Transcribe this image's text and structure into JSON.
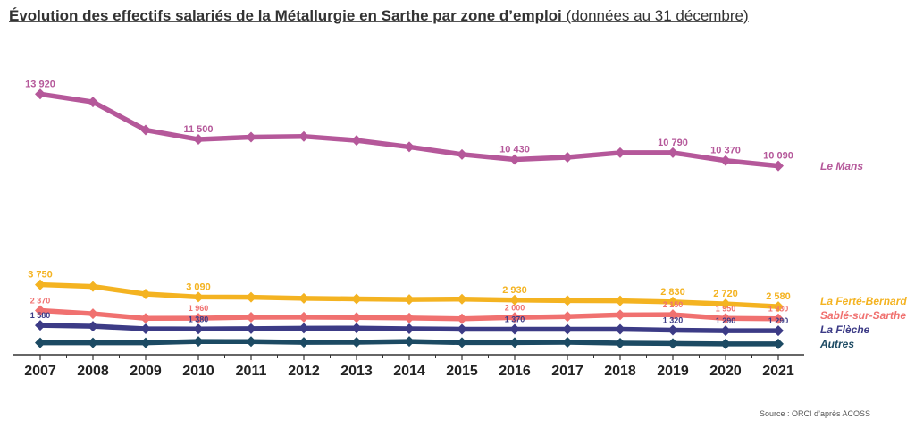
{
  "title": "Évolution des effectifs salariés de la Métallurgie en Sarthe par zone d’emploi",
  "subtitle": "(données au 31 décembre)",
  "source": "Source : ORCI d’après ACOSS",
  "chart_data": {
    "type": "line",
    "title": "Évolution des effectifs salariés de la Métallurgie en Sarthe par zone d’emploi (données au 31 décembre)",
    "xlabel": "",
    "ylabel": "",
    "ylim": [
      0,
      15000
    ],
    "grid": false,
    "legend": "right",
    "categories": [
      "2007",
      "2008",
      "2009",
      "2010",
      "2011",
      "2012",
      "2013",
      "2014",
      "2015",
      "2016",
      "2017",
      "2018",
      "2019",
      "2020",
      "2021"
    ],
    "series": [
      {
        "name": "Le Mans",
        "color": "#b5589a",
        "values": [
          13920,
          13500,
          12000,
          11500,
          11620,
          11660,
          11450,
          11100,
          10700,
          10430,
          10550,
          10790,
          10790,
          10370,
          10090
        ],
        "labels": [
          "13 920",
          null,
          null,
          "11 500",
          null,
          null,
          null,
          null,
          null,
          "10 430",
          null,
          null,
          "10 790",
          "10 370",
          "10 090"
        ]
      },
      {
        "name": "La Ferté-Bernard",
        "color": "#f4b321",
        "values": [
          3750,
          3650,
          3250,
          3090,
          3080,
          3020,
          2990,
          2960,
          2980,
          2930,
          2900,
          2890,
          2830,
          2720,
          2580
        ],
        "labels": [
          "3 750",
          null,
          null,
          "3 090",
          null,
          null,
          null,
          null,
          null,
          "2 930",
          null,
          null,
          "2 830",
          "2 720",
          "2 580"
        ]
      },
      {
        "name": "Sablé-sur-Sarthe",
        "color": "#f07170",
        "values": [
          2370,
          2200,
          1950,
          1960,
          2010,
          2020,
          2000,
          1970,
          1930,
          2000,
          2050,
          2140,
          2150,
          1950,
          1930
        ],
        "labels": [
          "2 370",
          null,
          null,
          "1 960",
          null,
          null,
          null,
          null,
          null,
          "2 000",
          null,
          null,
          "2 150",
          "1 950",
          "1 930"
        ]
      },
      {
        "name": "La Flèche",
        "color": "#3c3b86",
        "values": [
          1580,
          1530,
          1390,
          1380,
          1400,
          1420,
          1430,
          1390,
          1370,
          1370,
          1370,
          1370,
          1320,
          1290,
          1290
        ],
        "labels": [
          "1 580",
          null,
          null,
          "1 380",
          null,
          null,
          null,
          null,
          null,
          "1 370",
          null,
          null,
          "1 320",
          "1 290",
          "1 290"
        ]
      },
      {
        "name": "Autres",
        "color": "#1c4a63",
        "values": [
          650,
          650,
          650,
          720,
          710,
          670,
          680,
          720,
          660,
          660,
          680,
          630,
          610,
          590,
          590
        ],
        "labels": [
          null,
          null,
          null,
          null,
          null,
          null,
          null,
          null,
          null,
          null,
          null,
          null,
          null,
          null,
          null
        ]
      }
    ]
  }
}
